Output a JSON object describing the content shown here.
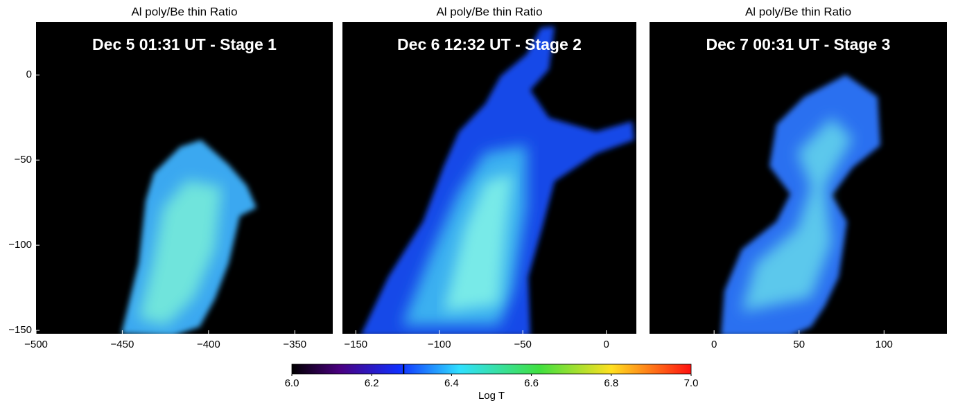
{
  "chart_data": [
    {
      "type": "image",
      "title": "Al poly/Be thin Ratio",
      "annotation": "Dec 5 01:31 UT - Stage 1",
      "xlim": [
        -500,
        -328
      ],
      "xticks": [
        {
          "value": -500,
          "label": "−500"
        },
        {
          "value": -450,
          "label": "−450"
        },
        {
          "value": -400,
          "label": "−400"
        },
        {
          "value": -350,
          "label": "−350"
        }
      ],
      "ylim": [
        -152,
        31
      ],
      "yticks": [
        0,
        {
          "value": -50,
          "label": "−50"
        },
        {
          "value": -100,
          "label": "−100"
        },
        {
          "value": -150,
          "label": "−150"
        }
      ]
    },
    {
      "type": "image",
      "title": "Al poly/Be thin Ratio",
      "annotation": "Dec 6 12:32 UT - Stage 2",
      "xlim": [
        -158,
        18
      ],
      "xticks": [
        {
          "value": -150,
          "label": "−150"
        },
        {
          "value": -100,
          "label": "−100"
        },
        {
          "value": -50,
          "label": "−50"
        },
        0
      ],
      "ylim": [
        -152,
        31
      ]
    },
    {
      "type": "image",
      "title": "Al poly/Be thin Ratio",
      "annotation": "Dec 7 00:31 UT - Stage 3",
      "xlim": [
        -38,
        137
      ],
      "xticks": [
        0,
        50,
        100
      ],
      "ylim": [
        -152,
        31
      ]
    },
    {
      "type": "colorbar",
      "xlabel": "Log T",
      "xlim": [
        6.0,
        7.0
      ],
      "xticks": [
        {
          "value": 6.0,
          "label": "6.0"
        },
        6.2,
        6.4,
        6.6,
        6.8,
        {
          "value": 7.0,
          "label": "7.0"
        }
      ],
      "marker_value": 6.28
    }
  ]
}
